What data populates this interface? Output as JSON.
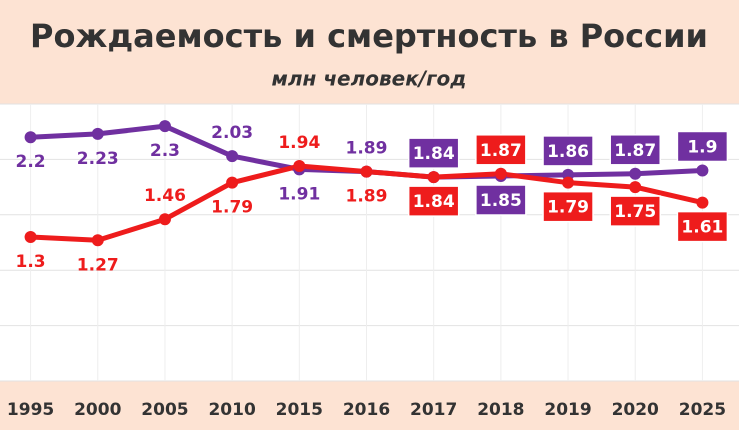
{
  "chart_data": {
    "type": "line",
    "title": "Рождаемость и смертность в России",
    "subtitle": "млн человек/год",
    "categories": [
      "1995",
      "2000",
      "2005",
      "2010",
      "2015",
      "2016",
      "2017",
      "2018",
      "2019",
      "2020",
      "2025"
    ],
    "series": [
      {
        "color": "#7030a0",
        "values": [
          2.2,
          2.23,
          2.3,
          2.03,
          1.91,
          1.89,
          1.84,
          1.85,
          1.86,
          1.87,
          1.9
        ]
      },
      {
        "color": "#ee1c1c",
        "values": [
          1.3,
          1.27,
          1.46,
          1.79,
          1.94,
          1.89,
          1.84,
          1.87,
          1.79,
          1.75,
          1.61
        ]
      }
    ],
    "ylim": [
      0,
      2.5
    ],
    "yticks": [
      0,
      0.5,
      1,
      1.5,
      2,
      2.5
    ],
    "grid": true
  }
}
